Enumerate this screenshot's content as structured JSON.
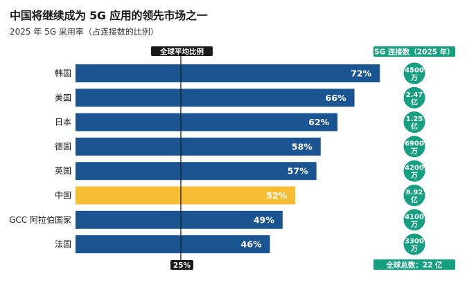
{
  "title": "中国将继续成为 5G 应用的领先市场之一",
  "subtitle": "2025 年 5G 采用率（占连接数的比例）",
  "chart_data": {
    "type": "bar",
    "orientation": "horizontal",
    "categories": [
      "韩国",
      "美国",
      "日本",
      "德国",
      "英国",
      "中国",
      "GCC 阿拉伯国家",
      "法国"
    ],
    "values": [
      72,
      66,
      62,
      58,
      57,
      52,
      49,
      46
    ],
    "value_labels": [
      "72%",
      "66%",
      "62%",
      "58%",
      "57%",
      "52%",
      "49%",
      "46%"
    ],
    "highlight": "中国",
    "reference_line": {
      "label": "全球平均比例",
      "value": 25,
      "value_label": "25%"
    },
    "connections_header": "5G 连接数（2025 年）",
    "connections": [
      [
        "4500",
        "万"
      ],
      [
        "2.47",
        "亿"
      ],
      [
        "1.25",
        "亿"
      ],
      [
        "6900",
        "万"
      ],
      [
        "4200",
        "万"
      ],
      [
        "8.92",
        "亿"
      ],
      [
        "4100",
        "万"
      ],
      [
        "3300",
        "万"
      ]
    ],
    "total_label": "全球总数：22 亿",
    "xlim": [
      0,
      80
    ],
    "colors": {
      "bar": "#1b5591",
      "highlight": "#f6bd35",
      "line": "#1a1a1a",
      "pill": "#16a081",
      "circle": "#16a081",
      "reference_pill": "#1a1a1a"
    }
  }
}
